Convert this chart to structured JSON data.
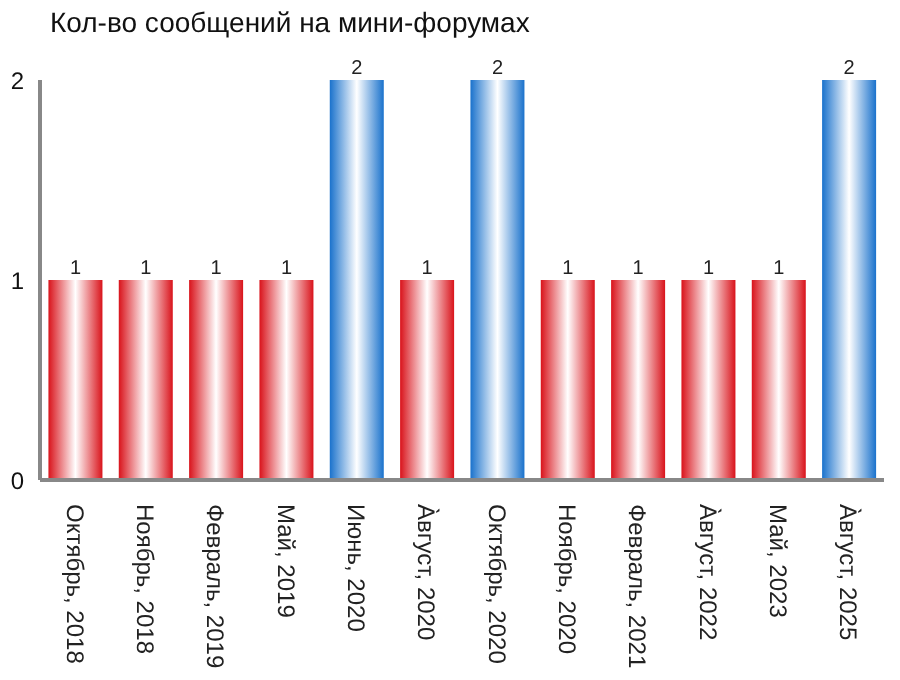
{
  "chart_data": {
    "type": "bar",
    "title": "Кол-во сообщений на мини-форумах",
    "categories": [
      "Октябрь, 2018",
      "Ноябрь, 2018",
      "Февраль, 2019",
      "Май, 2019",
      "Июнь, 2020",
      "А̀вгуст, 2020",
      "Октябрь, 2020",
      "Ноябрь, 2020",
      "Февраль, 2021",
      "А̀вгуст, 2022",
      "Май, 2023",
      "А̀вгуст, 2025"
    ],
    "values": [
      1,
      1,
      1,
      1,
      2,
      1,
      2,
      1,
      1,
      1,
      1,
      2
    ],
    "colors": [
      "#d9131b",
      "#d9131b",
      "#d9131b",
      "#d9131b",
      "#1a72cc",
      "#d9131b",
      "#1a72cc",
      "#d9131b",
      "#d9131b",
      "#d9131b",
      "#d9131b",
      "#1a72cc"
    ],
    "ylim": [
      0,
      2
    ],
    "yticks": [
      0,
      1,
      2
    ],
    "data_labels": true
  }
}
